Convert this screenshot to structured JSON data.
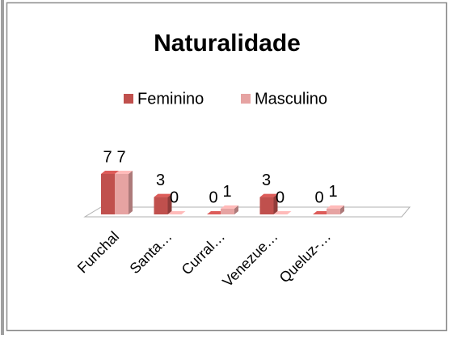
{
  "chart_data": {
    "type": "bar3d",
    "title": "Naturalidade",
    "categories": [
      "Funchal",
      "Santa…",
      "Curral…",
      "Venezue…",
      "Queluz-…"
    ],
    "series": [
      {
        "name": "Feminino",
        "color": "#c0504d",
        "values": [
          7,
          3,
          0,
          3,
          0
        ]
      },
      {
        "name": "Masculino",
        "color": "#e6a3a2",
        "values": [
          7,
          0,
          1,
          0,
          1
        ]
      }
    ],
    "legend": "top",
    "data_labels": true
  }
}
